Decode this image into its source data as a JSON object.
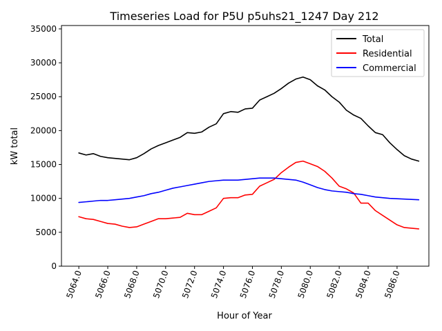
{
  "chart_data": {
    "type": "line",
    "title": "Timeseries Load for P5U p5uhs21_1247  Day 212",
    "xlabel": "Hour of Year",
    "ylabel": "kW total",
    "xlim": [
      5062.8,
      5088.2
    ],
    "ylim": [
      0,
      35500
    ],
    "x_ticks": [
      5064,
      5066,
      5068,
      5070,
      5072,
      5074,
      5076,
      5078,
      5080,
      5082,
      5084,
      5086
    ],
    "x_tick_labels": [
      "5064.0",
      "5066.0",
      "5068.0",
      "5070.0",
      "5072.0",
      "5074.0",
      "5076.0",
      "5078.0",
      "5080.0",
      "5082.0",
      "5084.0",
      "5086.0"
    ],
    "y_ticks": [
      0,
      5000,
      10000,
      15000,
      20000,
      25000,
      30000,
      35000
    ],
    "y_tick_labels": [
      "0",
      "5000",
      "10000",
      "15000",
      "20000",
      "25000",
      "30000",
      "35000"
    ],
    "grid": false,
    "legend_position": "top-right",
    "x": [
      5064,
      5064.5,
      5065,
      5065.5,
      5066,
      5066.5,
      5067,
      5067.5,
      5068,
      5068.5,
      5069,
      5069.5,
      5070,
      5070.5,
      5071,
      5071.5,
      5072,
      5072.5,
      5073,
      5073.5,
      5074,
      5074.5,
      5075,
      5075.5,
      5076,
      5076.5,
      5077,
      5077.5,
      5078,
      5078.5,
      5079,
      5079.5,
      5080,
      5080.5,
      5081,
      5081.5,
      5082,
      5082.5,
      5083,
      5083.5,
      5084,
      5084.5,
      5085,
      5085.5,
      5086,
      5086.5,
      5087,
      5087.5
    ],
    "series": [
      {
        "name": "Total",
        "color": "#000000",
        "values": [
          16700,
          16400,
          16600,
          16200,
          16000,
          15900,
          15800,
          15700,
          16000,
          16600,
          17300,
          17800,
          18200,
          18600,
          19000,
          19700,
          19600,
          19800,
          20500,
          21000,
          22500,
          22800,
          22700,
          23200,
          23300,
          24500,
          25000,
          25500,
          26200,
          27000,
          27600,
          27900,
          27500,
          26600,
          26000,
          25000,
          24200,
          23000,
          22300,
          21800,
          20700,
          19700,
          19400,
          18200,
          17200,
          16300,
          15800,
          15500
        ]
      },
      {
        "name": "Residential",
        "color": "#ff0000",
        "values": [
          7300,
          7000,
          6900,
          6600,
          6300,
          6200,
          5900,
          5700,
          5800,
          6200,
          6600,
          7000,
          7000,
          7100,
          7200,
          7800,
          7600,
          7600,
          8100,
          8600,
          10000,
          10100,
          10100,
          10500,
          10600,
          11800,
          12300,
          12800,
          13800,
          14600,
          15300,
          15500,
          15100,
          14700,
          14000,
          13000,
          11800,
          11400,
          10800,
          9300,
          9300,
          8200,
          7500,
          6800,
          6100,
          5700,
          5600,
          5500
        ]
      },
      {
        "name": "Commercial",
        "color": "#0000ff",
        "values": [
          9400,
          9500,
          9600,
          9700,
          9700,
          9800,
          9900,
          10000,
          10200,
          10400,
          10700,
          10900,
          11200,
          11500,
          11700,
          11900,
          12100,
          12300,
          12500,
          12600,
          12700,
          12700,
          12700,
          12800,
          12900,
          13000,
          13000,
          13000,
          12900,
          12800,
          12700,
          12400,
          12000,
          11600,
          11300,
          11100,
          11000,
          10900,
          10700,
          10600,
          10400,
          10200,
          10100,
          10000,
          9950,
          9900,
          9850,
          9800
        ]
      }
    ]
  }
}
